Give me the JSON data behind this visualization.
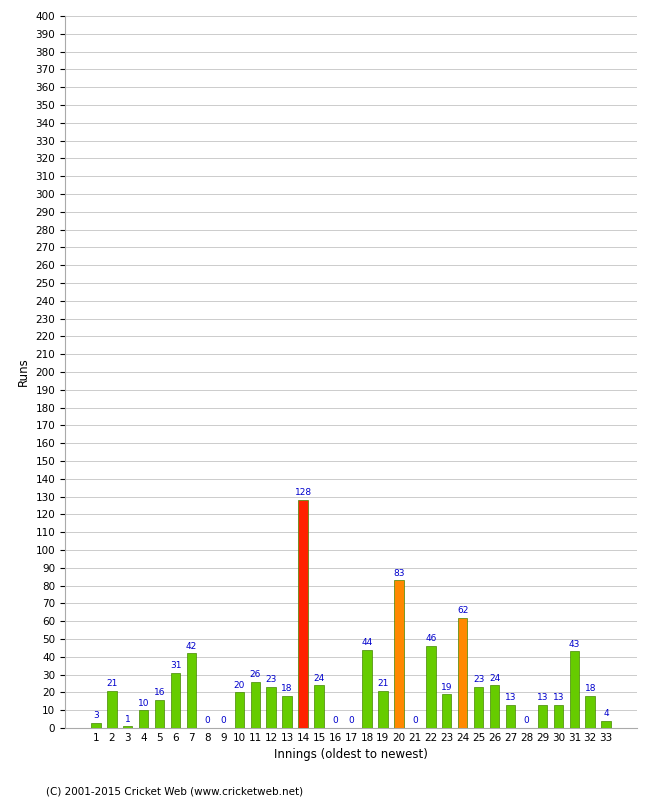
{
  "xlabel": "Innings (oldest to newest)",
  "ylabel": "Runs",
  "innings": [
    1,
    2,
    3,
    4,
    5,
    6,
    7,
    8,
    9,
    10,
    11,
    12,
    13,
    14,
    15,
    16,
    17,
    18,
    19,
    20,
    21,
    22,
    23,
    24,
    25,
    26,
    27,
    28,
    29,
    30,
    31,
    32,
    33
  ],
  "values": [
    3,
    21,
    1,
    10,
    16,
    31,
    42,
    0,
    0,
    20,
    26,
    23,
    18,
    128,
    24,
    0,
    0,
    44,
    21,
    83,
    0,
    46,
    19,
    62,
    23,
    24,
    13,
    0,
    13,
    13,
    43,
    18,
    4
  ],
  "colors": [
    "#66cc00",
    "#66cc00",
    "#66cc00",
    "#66cc00",
    "#66cc00",
    "#66cc00",
    "#66cc00",
    "#66cc00",
    "#66cc00",
    "#66cc00",
    "#66cc00",
    "#66cc00",
    "#66cc00",
    "#ff2200",
    "#66cc00",
    "#66cc00",
    "#66cc00",
    "#66cc00",
    "#66cc00",
    "#ff8800",
    "#66cc00",
    "#66cc00",
    "#66cc00",
    "#ff8800",
    "#66cc00",
    "#66cc00",
    "#66cc00",
    "#66cc00",
    "#66cc00",
    "#66cc00",
    "#66cc00",
    "#66cc00",
    "#66cc00"
  ],
  "ylim": [
    0,
    400
  ],
  "yticks": [
    0,
    10,
    20,
    30,
    40,
    50,
    60,
    70,
    80,
    90,
    100,
    110,
    120,
    130,
    140,
    150,
    160,
    170,
    180,
    190,
    200,
    210,
    220,
    230,
    240,
    250,
    260,
    270,
    280,
    290,
    300,
    310,
    320,
    330,
    340,
    350,
    360,
    370,
    380,
    390,
    400
  ],
  "background_color": "#ffffff",
  "grid_color": "#cccccc",
  "label_color": "#0000cc",
  "bar_edge_color": "#448800",
  "footer": "(C) 2001-2015 Cricket Web (www.cricketweb.net)"
}
